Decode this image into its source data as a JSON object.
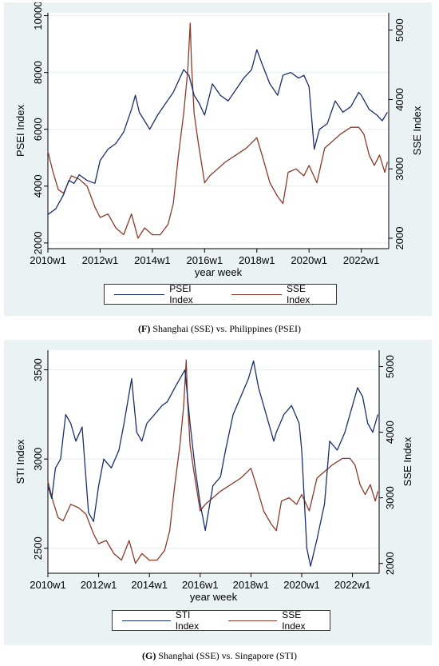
{
  "colors": {
    "primary": "#1a2e6e",
    "secondary": "#8c3a2a"
  },
  "chart_data": [
    {
      "type": "line",
      "caption_letter": "(F)",
      "caption_text": " Shanghai (SSE) vs. Philippines (PSEI)",
      "xlabel": "year week",
      "ylabel": "PSEI Index",
      "ylabel_right": "SSE Index",
      "xticks": [
        "2010w1",
        "2012w1",
        "2014w1",
        "2016w1",
        "2018w1",
        "2020w1",
        "2022w1"
      ],
      "xlim": [
        2010,
        2023.05
      ],
      "ylim": [
        1800,
        10100
      ],
      "yticks": [
        2000,
        4000,
        6000,
        8000,
        10000
      ],
      "ylim_right": [
        1850,
        5250
      ],
      "yticks_right": [
        2000,
        3000,
        4000,
        5000
      ],
      "legend_position": "bottom",
      "series": [
        {
          "name": "PSEI Index",
          "axis": "left",
          "x": [
            2010.0,
            2010.3,
            2010.6,
            2010.8,
            2011.0,
            2011.2,
            2011.5,
            2011.8,
            2012.0,
            2012.3,
            2012.6,
            2012.9,
            2013.2,
            2013.35,
            2013.5,
            2013.7,
            2013.9,
            2014.2,
            2014.5,
            2014.8,
            2015.0,
            2015.2,
            2015.4,
            2015.6,
            2015.8,
            2016.0,
            2016.3,
            2016.6,
            2016.9,
            2017.2,
            2017.5,
            2017.8,
            2018.0,
            2018.2,
            2018.5,
            2018.8,
            2019.0,
            2019.3,
            2019.6,
            2019.8,
            2020.0,
            2020.2,
            2020.4,
            2020.7,
            2021.0,
            2021.3,
            2021.6,
            2021.9,
            2022.0,
            2022.3,
            2022.6,
            2022.8,
            2023.0
          ],
          "values": [
            3000,
            3200,
            3700,
            4200,
            4100,
            4400,
            4200,
            4100,
            4900,
            5300,
            5500,
            5900,
            6700,
            7200,
            6600,
            6300,
            6000,
            6500,
            6900,
            7300,
            7700,
            8100,
            7900,
            7200,
            6900,
            6500,
            7600,
            7200,
            7000,
            7400,
            7800,
            8100,
            8800,
            8300,
            7600,
            7200,
            7900,
            8000,
            7800,
            7900,
            7500,
            5300,
            6000,
            6200,
            7000,
            6600,
            6800,
            7300,
            7200,
            6700,
            6500,
            6300,
            6600
          ]
        },
        {
          "name": "SSE Index",
          "axis": "right",
          "x": [
            2010.0,
            2010.2,
            2010.4,
            2010.6,
            2010.9,
            2011.2,
            2011.5,
            2011.8,
            2012.0,
            2012.3,
            2012.6,
            2012.9,
            2013.2,
            2013.45,
            2013.7,
            2014.0,
            2014.3,
            2014.6,
            2014.8,
            2015.0,
            2015.2,
            2015.35,
            2015.45,
            2015.5,
            2015.6,
            2015.75,
            2016.0,
            2016.2,
            2016.5,
            2016.8,
            2017.2,
            2017.6,
            2018.0,
            2018.2,
            2018.5,
            2018.8,
            2019.0,
            2019.2,
            2019.5,
            2019.8,
            2020.0,
            2020.3,
            2020.6,
            2020.9,
            2021.2,
            2021.6,
            2021.9,
            2022.1,
            2022.3,
            2022.5,
            2022.7,
            2022.9,
            2023.0
          ],
          "values": [
            3250,
            2950,
            2700,
            2650,
            2900,
            2850,
            2750,
            2450,
            2300,
            2350,
            2150,
            2050,
            2350,
            2000,
            2150,
            2050,
            2050,
            2200,
            2500,
            3200,
            3800,
            4400,
            5100,
            4500,
            3800,
            3400,
            2800,
            2900,
            3000,
            3100,
            3200,
            3300,
            3450,
            3200,
            2800,
            2600,
            2500,
            2950,
            3000,
            2900,
            3050,
            2800,
            3300,
            3400,
            3500,
            3600,
            3600,
            3500,
            3200,
            3050,
            3200,
            2950,
            3100
          ]
        }
      ]
    },
    {
      "type": "line",
      "caption_letter": "(G)",
      "caption_text": " Shanghai (SSE) vs. Singapore (STI)",
      "xlabel": "year week",
      "ylabel": "STI Index",
      "ylabel_right": "SSE Index",
      "xticks": [
        "2010w1",
        "2012w1",
        "2014w1",
        "2016w1",
        "2018w1",
        "2020w1",
        "2022w1"
      ],
      "xlim": [
        2010,
        2023.05
      ],
      "ylim": [
        2360,
        3610
      ],
      "yticks": [
        2500,
        3000,
        3500
      ],
      "ylim_right": [
        1850,
        5250
      ],
      "yticks_right": [
        2000,
        3000,
        4000,
        5000
      ],
      "legend_position": "bottom",
      "series": [
        {
          "name": "STI Index",
          "axis": "left",
          "x": [
            2010.0,
            2010.15,
            2010.3,
            2010.5,
            2010.7,
            2010.9,
            2011.1,
            2011.35,
            2011.6,
            2011.8,
            2012.0,
            2012.2,
            2012.5,
            2012.8,
            2013.0,
            2013.3,
            2013.5,
            2013.7,
            2013.9,
            2014.2,
            2014.5,
            2014.7,
            2015.0,
            2015.2,
            2015.4,
            2015.6,
            2015.8,
            2016.0,
            2016.2,
            2016.5,
            2016.8,
            2017.0,
            2017.3,
            2017.6,
            2017.9,
            2018.1,
            2018.3,
            2018.6,
            2018.9,
            2019.0,
            2019.3,
            2019.6,
            2019.9,
            2020.0,
            2020.2,
            2020.35,
            2020.6,
            2020.9,
            2021.1,
            2021.4,
            2021.7,
            2021.9,
            2022.2,
            2022.4,
            2022.6,
            2022.8,
            2023.0
          ],
          "values": [
            2850,
            2780,
            2950,
            3000,
            3250,
            3200,
            3100,
            3180,
            2700,
            2650,
            2850,
            3000,
            2950,
            3050,
            3200,
            3450,
            3150,
            3100,
            3200,
            3250,
            3300,
            3320,
            3400,
            3450,
            3500,
            3200,
            2950,
            2750,
            2600,
            2850,
            2900,
            3050,
            3250,
            3350,
            3450,
            3550,
            3400,
            3250,
            3100,
            3150,
            3250,
            3300,
            3200,
            3050,
            2500,
            2400,
            2550,
            2750,
            3100,
            3050,
            3150,
            3250,
            3400,
            3350,
            3200,
            3150,
            3250
          ]
        },
        {
          "name": "SSE Index",
          "axis": "right",
          "x": [
            2010.0,
            2010.2,
            2010.4,
            2010.6,
            2010.9,
            2011.2,
            2011.5,
            2011.8,
            2012.0,
            2012.3,
            2012.6,
            2012.9,
            2013.2,
            2013.45,
            2013.7,
            2014.0,
            2014.3,
            2014.6,
            2014.8,
            2015.0,
            2015.2,
            2015.35,
            2015.45,
            2015.5,
            2015.6,
            2015.75,
            2016.0,
            2016.2,
            2016.5,
            2016.8,
            2017.2,
            2017.6,
            2018.0,
            2018.2,
            2018.5,
            2018.8,
            2019.0,
            2019.2,
            2019.5,
            2019.8,
            2020.0,
            2020.3,
            2020.6,
            2020.9,
            2021.2,
            2021.6,
            2021.9,
            2022.1,
            2022.3,
            2022.5,
            2022.7,
            2022.9,
            2023.0
          ],
          "values": [
            3250,
            2950,
            2700,
            2650,
            2900,
            2850,
            2750,
            2450,
            2300,
            2350,
            2150,
            2050,
            2350,
            2000,
            2150,
            2050,
            2050,
            2200,
            2500,
            3200,
            3800,
            4400,
            5100,
            4500,
            3800,
            3400,
            2800,
            2900,
            3000,
            3100,
            3200,
            3300,
            3450,
            3200,
            2800,
            2600,
            2500,
            2950,
            3000,
            2900,
            3050,
            2800,
            3300,
            3400,
            3500,
            3600,
            3600,
            3500,
            3200,
            3050,
            3200,
            2950,
            3100
          ]
        }
      ]
    }
  ]
}
